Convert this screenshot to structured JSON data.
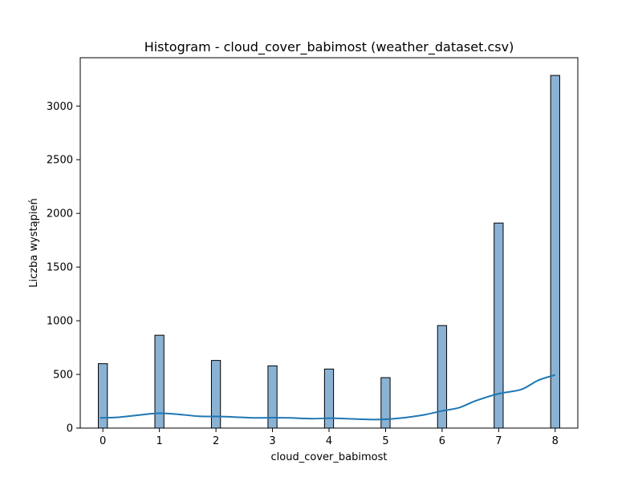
{
  "chart_data": {
    "type": "bar",
    "title": "Histogram - cloud_cover_babimost (weather_dataset.csv)",
    "xlabel": "cloud_cover_babimost",
    "ylabel": "Liczba wystąpień",
    "categories": [
      "0",
      "1",
      "2",
      "3",
      "4",
      "5",
      "6",
      "7",
      "8"
    ],
    "x": [
      0,
      1,
      2,
      3,
      4,
      5,
      6,
      7,
      8
    ],
    "values": [
      600,
      865,
      630,
      580,
      550,
      470,
      955,
      1910,
      3285
    ],
    "kde": {
      "x": [
        -0.05,
        0.3,
        0.7,
        1.0,
        1.3,
        1.7,
        2.0,
        2.3,
        2.7,
        3.0,
        3.3,
        3.7,
        4.0,
        4.3,
        4.7,
        5.0,
        5.3,
        5.7,
        6.0,
        6.3,
        6.6,
        7.0,
        7.4,
        7.7,
        8.0
      ],
      "y": [
        95,
        102,
        125,
        138,
        130,
        110,
        108,
        104,
        95,
        97,
        95,
        88,
        92,
        88,
        80,
        82,
        95,
        125,
        160,
        190,
        255,
        320,
        360,
        445,
        495
      ]
    },
    "xlim": [
      -0.4,
      8.4
    ],
    "ylim": [
      0,
      3450
    ],
    "xticks": [
      0,
      1,
      2,
      3,
      4,
      5,
      6,
      7,
      8
    ],
    "yticks": [
      0,
      500,
      1000,
      1500,
      2000,
      2500,
      3000
    ],
    "bar_width": 0.16,
    "grid": false,
    "colors": {
      "bar_fill": "#8ab2d4",
      "bar_edge": "#000000",
      "kde_line": "#1f77b4"
    }
  }
}
